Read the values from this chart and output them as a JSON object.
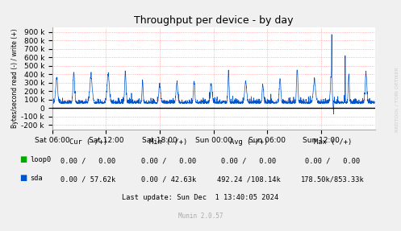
{
  "title": "Throughput per device - by day",
  "ylabel": "Bytes/second read (-) / write (+)",
  "ylim": [
    -250000,
    950000
  ],
  "yticks": [
    -200000,
    -100000,
    0,
    100000,
    200000,
    300000,
    400000,
    500000,
    600000,
    700000,
    800000,
    900000
  ],
  "ytick_labels": [
    "-200 k",
    "-100 k",
    "0",
    "100 k",
    "200 k",
    "300 k",
    "400 k",
    "500 k",
    "600 k",
    "700 k",
    "800 k",
    "900 k"
  ],
  "xtick_positions": [
    0,
    360,
    720,
    1080,
    1440,
    1800
  ],
  "xtick_labels": [
    "Sat 06:00",
    "Sat 12:00",
    "Sat 18:00",
    "Sun 00:00",
    "Sun 06:00",
    "Sun 12:00"
  ],
  "n_points": 2160,
  "background_color": "#f0f0f0",
  "plot_background": "#ffffff",
  "grid_color_h": "#ff8888",
  "line_color_sda": "#0055cc",
  "line_color_loop0": "#00aa00",
  "zero_line_color": "#000000",
  "watermark": "RRDTOOL / TOBI OETIKER",
  "legend_items": [
    {
      "label": "loop0",
      "color": "#00aa00"
    },
    {
      "label": "sda",
      "color": "#0055cc"
    }
  ],
  "cur_header": "Cur (-/+)",
  "min_header": "Min (-/+)",
  "avg_header": "Avg (-/+)",
  "max_header": "Max (-/+)",
  "loop0_cur": "0.00 /   0.00",
  "loop0_min": "0.00 /   0.00",
  "loop0_avg": "0.00 /   0.00",
  "loop0_max": "0.00 /   0.00",
  "sda_cur": "0.00 / 57.62k",
  "sda_min": "0.00 / 42.63k",
  "sda_avg": "492.24 /108.14k",
  "sda_max": "178.50k/853.33k",
  "last_update": "Last update: Sun Dec  1 13:40:05 2024",
  "munin_version": "Munin 2.0.57",
  "seed": 42
}
